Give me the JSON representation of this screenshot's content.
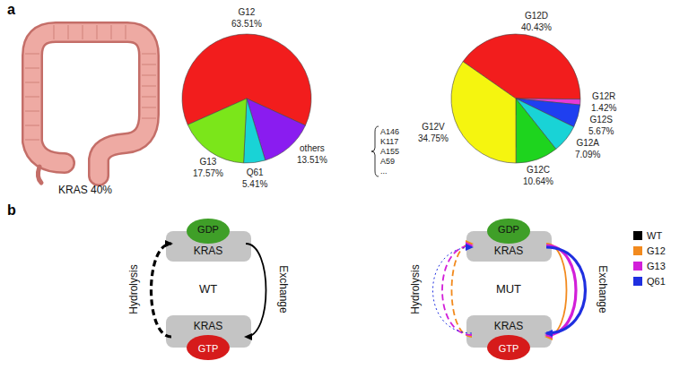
{
  "panels": [
    "a",
    "b"
  ],
  "illustration": {
    "label": "KRAS 40%"
  },
  "chart_data": [
    {
      "type": "pie",
      "categories": [
        "G12",
        "others",
        "Q61",
        "G13"
      ],
      "values": [
        63.51,
        13.51,
        5.41,
        17.57
      ],
      "value_labels": [
        "63.51%",
        "13.51%",
        "5.41%",
        "17.57%"
      ],
      "colors": [
        "#f21d1d",
        "#8a1cf0",
        "#19d3d6",
        "#7be61a"
      ],
      "data_labels": true,
      "annotations": [
        "A146",
        "K117",
        "A155",
        "A59",
        "..."
      ]
    },
    {
      "type": "pie",
      "categories": [
        "G12D",
        "G12R",
        "G12S",
        "G12A",
        "G12C",
        "G12V"
      ],
      "values": [
        40.43,
        1.42,
        5.67,
        7.09,
        10.64,
        34.75
      ],
      "value_labels": [
        "40.43%",
        "1.42%",
        "5.67%",
        "7.09%",
        "10.64%",
        "34.75%"
      ],
      "colors": [
        "#f21d1d",
        "#e83ad6",
        "#1f3ff0",
        "#19d3d6",
        "#1ed41e",
        "#f5f50f"
      ],
      "data_labels": true
    }
  ],
  "diagram": {
    "legend": [
      {
        "name": "WT",
        "color": "#000000"
      },
      {
        "name": "G12",
        "color": "#f28a1e"
      },
      {
        "name": "G13",
        "color": "#d21fd9"
      },
      {
        "name": "Q61",
        "color": "#1f2fe0"
      }
    ],
    "cycles": [
      {
        "state": "WT",
        "top": {
          "protein": "KRAS",
          "nucleotide": "GDP",
          "color": "#3f9f28"
        },
        "bottom": {
          "protein": "KRAS",
          "nucleotide": "GTP",
          "color": "#d61b1b"
        },
        "hydrolysis": {
          "label": "Hydrolysis",
          "arrows": [
            {
              "series": "WT",
              "line_style": "dashed",
              "weight": "thick"
            }
          ]
        },
        "exchange": {
          "label": "Exchange",
          "arrows": [
            {
              "series": "WT",
              "line_style": "solid",
              "weight": "medium"
            }
          ]
        }
      },
      {
        "state": "MUT",
        "top": {
          "protein": "KRAS",
          "nucleotide": "GDP",
          "color": "#3f9f28"
        },
        "bottom": {
          "protein": "KRAS",
          "nucleotide": "GTP",
          "color": "#d61b1b"
        },
        "hydrolysis": {
          "label": "Hydrolysis",
          "arrows": [
            {
              "series": "G12",
              "line_style": "dashed",
              "weight": "medium"
            },
            {
              "series": "G13",
              "line_style": "dashed",
              "weight": "medium"
            },
            {
              "series": "Q61",
              "line_style": "dotted",
              "weight": "thin"
            }
          ]
        },
        "exchange": {
          "label": "Exchange",
          "arrows": [
            {
              "series": "G12",
              "line_style": "solid",
              "weight": "medium"
            },
            {
              "series": "G13",
              "line_style": "solid",
              "weight": "thick"
            },
            {
              "series": "Q61",
              "line_style": "solid",
              "weight": "thick"
            }
          ]
        }
      }
    ]
  }
}
